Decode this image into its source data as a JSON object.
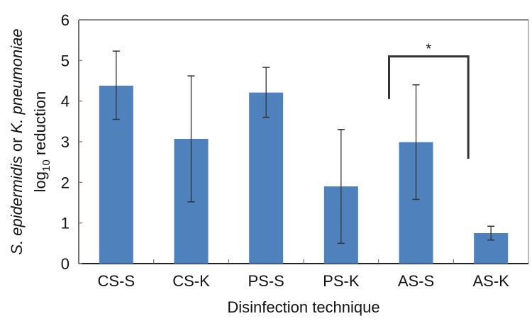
{
  "chart_data": {
    "type": "bar",
    "title": "",
    "xlabel": "Disinfection technique",
    "ylabel_line1_parts": [
      {
        "text": "S. epidermidis",
        "italic": true
      },
      {
        "text": " or ",
        "italic": false
      },
      {
        "text": "K. pneumoniae",
        "italic": true
      }
    ],
    "ylabel_line2": {
      "prefix": "log",
      "subscript": "10",
      "suffix": " reduction"
    },
    "categories": [
      "CS-S",
      "CS-K",
      "PS-S",
      "PS-K",
      "AS-S",
      "AS-K"
    ],
    "values": [
      4.38,
      3.07,
      4.21,
      1.9,
      2.99,
      0.75
    ],
    "error_low": [
      3.55,
      1.52,
      3.6,
      0.5,
      1.58,
      0.58
    ],
    "error_high": [
      5.23,
      4.62,
      4.83,
      3.3,
      4.4,
      0.92
    ],
    "ylim": [
      0,
      6
    ],
    "yticks": [
      0,
      1,
      2,
      3,
      4,
      5,
      6
    ],
    "grid": false,
    "legend": "none",
    "bar_color": "#4f81bd",
    "annotations": [
      {
        "type": "significance-bracket",
        "from": "AS-S",
        "to": "AS-K",
        "label": "*",
        "left_end": 4.05,
        "right_end": 2.58,
        "top": 5.1
      }
    ]
  }
}
